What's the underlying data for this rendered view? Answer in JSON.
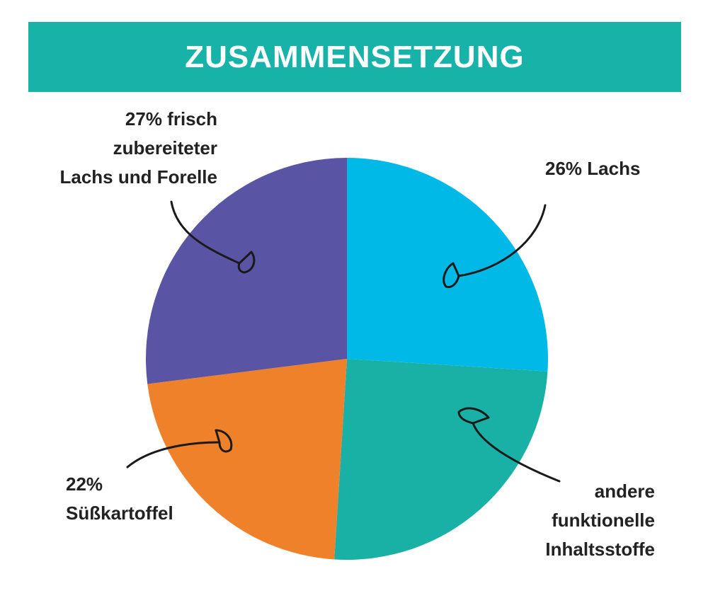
{
  "chart_data": {
    "type": "pie",
    "title": "ZUSAMMENSETZUNG",
    "slices": [
      {
        "name": "Lachs",
        "value": 26,
        "color": "#00b9e6",
        "label_lines": [
          "26% Lachs"
        ]
      },
      {
        "name": "andere funktionelle Inhaltsstoffe",
        "value": 25,
        "color": "#19b1a6",
        "label_lines": [
          "andere",
          "funktionelle",
          "Inhaltsstoffe"
        ]
      },
      {
        "name": "Süßkartoffel",
        "value": 22,
        "color": "#f0812b",
        "label_lines": [
          "22%",
          "Süßkartoffel"
        ]
      },
      {
        "name": "frisch zubereiteter Lachs und Forelle",
        "value": 27,
        "color": "#5a54a4",
        "label_lines": [
          "27% frisch",
          "zubereiteter",
          "Lachs und Forelle"
        ]
      }
    ],
    "start_angle": "top",
    "direction": "clockwise",
    "legend": "none"
  }
}
